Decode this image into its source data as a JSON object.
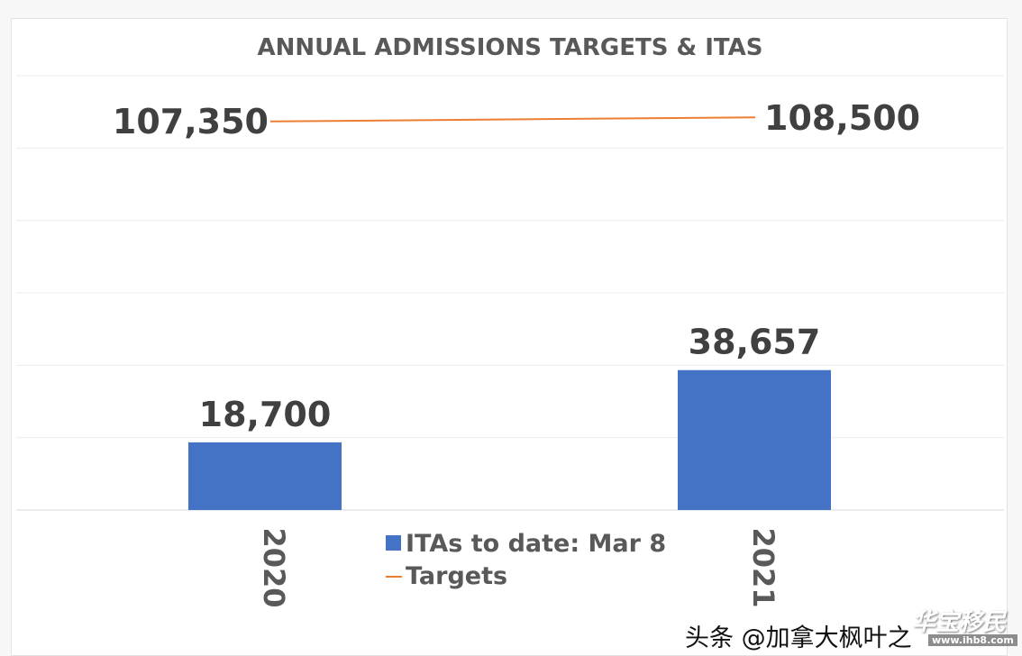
{
  "chart_data": {
    "type": "bar",
    "title": "ANNUAL ADMISSIONS TARGETS & ITAS",
    "categories": [
      "2020",
      "2021"
    ],
    "series": [
      {
        "name": "ITAs to date: Mar 8",
        "type": "bar",
        "values": [
          18700,
          38657
        ],
        "labels": [
          "18,700",
          "38,657"
        ],
        "color": "#4472C4"
      },
      {
        "name": "Targets",
        "type": "line",
        "values": [
          107350,
          108500
        ],
        "labels": [
          "107,350",
          "108,500"
        ],
        "color": "#ED7D31"
      }
    ],
    "ylim": [
      0,
      120000
    ],
    "grid": true,
    "legend_position": "bottom-center"
  },
  "watermark": {
    "left_text": "头条 @加拿大枫叶之",
    "right_text": "华宝移民",
    "url": "www.ihb8.com"
  }
}
